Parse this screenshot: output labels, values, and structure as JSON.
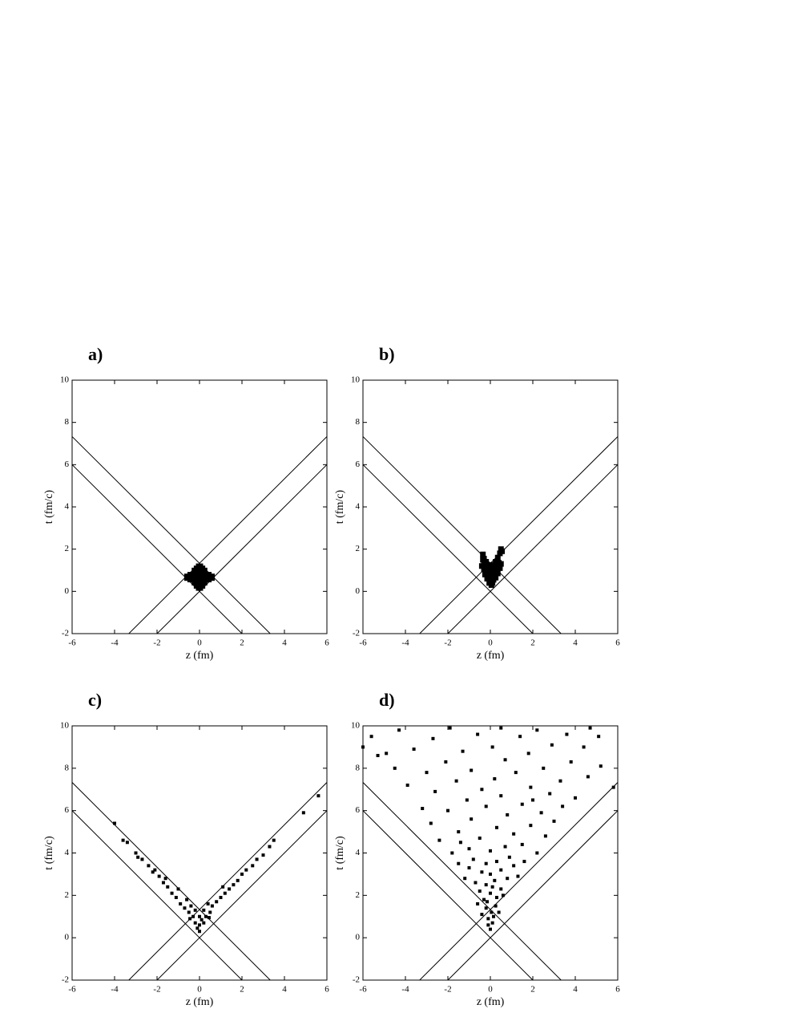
{
  "chart_data": [
    {
      "type": "scatter",
      "title": "a)",
      "x_label": "z (fm)",
      "y_label": "t (fm/c)",
      "xlim": [
        -6,
        6
      ],
      "ylim": [
        -2,
        10
      ],
      "xticks": [
        -6,
        -4,
        -2,
        0,
        2,
        4,
        6
      ],
      "yticks": [
        -2,
        0,
        2,
        4,
        6,
        8,
        10
      ],
      "color": "#000000",
      "marker_size": 9,
      "lines": [
        {
          "x": [
            -6,
            2
          ],
          "values": [
            6,
            -2
          ]
        },
        {
          "x": [
            -2,
            6
          ],
          "values": [
            -2,
            6
          ]
        },
        {
          "x": [
            -6,
            3.33
          ],
          "values": [
            7.33,
            -2
          ]
        },
        {
          "x": [
            -3.33,
            6
          ],
          "values": [
            -2,
            7.33
          ]
        }
      ],
      "x": [
        0,
        0,
        0,
        0,
        0,
        -0.2,
        -0.2,
        -0.2,
        0.2,
        0.2,
        0.2,
        -0.4,
        -0.4,
        0.4,
        0.4,
        -0.55,
        0.55,
        -0.1,
        0.1,
        -0.1,
        0.1
      ],
      "values": [
        0.2,
        0.45,
        0.7,
        0.95,
        1.15,
        0.45,
        0.7,
        0.95,
        0.45,
        0.7,
        0.95,
        0.6,
        0.75,
        0.6,
        0.75,
        0.67,
        0.67,
        0.3,
        0.3,
        1.05,
        1.05
      ]
    },
    {
      "type": "scatter",
      "title": "b)",
      "x_label": "z (fm)",
      "y_label": "t (fm/c)",
      "xlim": [
        -6,
        6
      ],
      "ylim": [
        -2,
        10
      ],
      "xticks": [
        -6,
        -4,
        -2,
        0,
        2,
        4,
        6
      ],
      "yticks": [
        -2,
        0,
        2,
        4,
        6,
        8,
        10
      ],
      "color": "#000000",
      "marker_size": 7,
      "lines": [
        {
          "x": [
            -6,
            2
          ],
          "values": [
            6,
            -2
          ]
        },
        {
          "x": [
            -2,
            6
          ],
          "values": [
            -2,
            6
          ]
        },
        {
          "x": [
            -6,
            3.33
          ],
          "values": [
            7.33,
            -2
          ]
        },
        {
          "x": [
            -3.33,
            6
          ],
          "values": [
            -2,
            7.33
          ]
        }
      ],
      "x": [
        -0.35,
        -0.3,
        -0.2,
        0.5,
        0.45,
        0.35,
        0.25,
        0.1,
        -0.05,
        -0.3,
        -0.15,
        0,
        0.15,
        0.3,
        0.4,
        -0.3,
        -0.15,
        0,
        0.15,
        0.3,
        0.45,
        -0.25,
        -0.1,
        0.05,
        0.2,
        0.35,
        -0.15,
        0,
        0.15,
        0.25,
        -0.05,
        0.1,
        0.05,
        -0.35,
        0.55,
        -0.4,
        0.5
      ],
      "values": [
        1.75,
        1.55,
        1.4,
        2.0,
        1.8,
        1.6,
        1.4,
        1.25,
        1.25,
        1.3,
        1.15,
        1.1,
        1.15,
        1.25,
        1.35,
        1.05,
        0.95,
        0.9,
        0.95,
        1.05,
        1.1,
        0.8,
        0.75,
        0.7,
        0.75,
        0.85,
        0.6,
        0.55,
        0.55,
        0.65,
        0.4,
        0.4,
        0.3,
        1.5,
        1.9,
        1.2,
        1.3
      ]
    },
    {
      "type": "scatter",
      "title": "c)",
      "x_label": "z (fm)",
      "y_label": "t (fm/c)",
      "xlim": [
        -6,
        6
      ],
      "ylim": [
        -2,
        10
      ],
      "xticks": [
        -6,
        -4,
        -2,
        0,
        2,
        4,
        6
      ],
      "yticks": [
        -2,
        0,
        2,
        4,
        6,
        8,
        10
      ],
      "color": "#000000",
      "marker_size": 4,
      "lines": [
        {
          "x": [
            -6,
            2
          ],
          "values": [
            6,
            -2
          ]
        },
        {
          "x": [
            -2,
            6
          ],
          "values": [
            -2,
            6
          ]
        },
        {
          "x": [
            -6,
            3.33
          ],
          "values": [
            7.33,
            -2
          ]
        },
        {
          "x": [
            -3.33,
            6
          ],
          "values": [
            -2,
            7.33
          ]
        }
      ],
      "x": [
        0,
        0,
        -0.2,
        0.2,
        -0.3,
        0,
        0.3,
        -0.5,
        -0.2,
        0.2,
        0.5,
        -0.7,
        0.6,
        -0.9,
        -0.4,
        0.8,
        -1.1,
        1.0,
        -0.6,
        0.4,
        -1.3,
        1.2,
        -1.0,
        1.4,
        -1.5,
        1.1,
        -1.7,
        1.6,
        -1.9,
        1.8,
        -1.6,
        2.0,
        -2.2,
        2.2,
        -2.4,
        2.5,
        -2.1,
        2.7,
        -2.7,
        3.0,
        -3.0,
        3.3,
        -2.9,
        3.5,
        -3.6,
        -3.4,
        -4.0,
        4.9,
        5.6,
        -0.1,
        0.1,
        -0.45,
        0.45
      ],
      "values": [
        0.3,
        0.6,
        0.7,
        0.7,
        1.0,
        1.0,
        1.0,
        1.2,
        1.3,
        1.3,
        1.2,
        1.4,
        1.5,
        1.6,
        1.5,
        1.7,
        1.9,
        1.9,
        1.8,
        1.6,
        2.1,
        2.1,
        2.3,
        2.3,
        2.4,
        2.4,
        2.6,
        2.5,
        2.9,
        2.7,
        2.8,
        3.0,
        3.1,
        3.2,
        3.4,
        3.4,
        3.2,
        3.7,
        3.7,
        3.9,
        4.0,
        4.3,
        3.8,
        4.6,
        4.6,
        4.5,
        5.4,
        5.9,
        6.7,
        0.45,
        0.85,
        0.9,
        0.95
      ]
    },
    {
      "type": "scatter",
      "title": "d)",
      "x_label": "z (fm)",
      "y_label": "t (fm/c)",
      "xlim": [
        -6,
        6
      ],
      "ylim": [
        -2,
        10
      ],
      "xticks": [
        -6,
        -4,
        -2,
        0,
        2,
        4,
        6
      ],
      "yticks": [
        -2,
        0,
        2,
        4,
        6,
        8,
        10
      ],
      "color": "#000000",
      "marker_size": 4,
      "lines": [
        {
          "x": [
            -6,
            2
          ],
          "values": [
            6,
            -2
          ]
        },
        {
          "x": [
            -2,
            6
          ],
          "values": [
            -2,
            6
          ]
        },
        {
          "x": [
            -6,
            3.33
          ],
          "values": [
            7.33,
            -2
          ]
        },
        {
          "x": [
            -3.33,
            6
          ],
          "values": [
            -2,
            7.33
          ]
        }
      ],
      "x": [
        0,
        0.1,
        -0.1,
        0.05,
        -0.2,
        0.25,
        -0.3,
        0.3,
        0,
        -0.5,
        0.5,
        -0.2,
        0.2,
        -0.7,
        0.8,
        0,
        -0.4,
        0.5,
        -1.0,
        1.1,
        -0.2,
        0.3,
        -0.8,
        0.9,
        -1.5,
        1.6,
        -0.1,
        0.15,
        -0.15,
        0.4,
        -0.4,
        0.6,
        -0.6,
        0.1,
        -1.2,
        1.3,
        -1.8,
        -1.0,
        0,
        0.7,
        1.5,
        2.2,
        -2.4,
        -0.5,
        1.1,
        2.6,
        -1.5,
        0.3,
        1.9,
        3.0,
        -2.8,
        -0.9,
        0.8,
        2.4,
        -2.0,
        -0.2,
        1.5,
        3.4,
        -3.2,
        -1.1,
        0.5,
        2.8,
        4.0,
        -2.6,
        -0.4,
        1.9,
        -3.9,
        -1.6,
        0.2,
        3.3,
        4.6,
        -3.0,
        -0.9,
        1.2,
        2.5,
        -4.5,
        -2.1,
        0.7,
        3.8,
        5.2,
        -5.3,
        -1.3,
        1.8,
        -3.6,
        0.1,
        2.9,
        4.4,
        -5.6,
        -2.7,
        -0.6,
        1.4,
        3.6,
        5.1,
        -4.3,
        -1.9,
        0.5,
        2.2,
        4.7,
        -6.0,
        5.8,
        -4.9,
        2.0,
        -1.4
      ],
      "values": [
        0.4,
        0.7,
        0.9,
        1.2,
        1.4,
        1.5,
        1.8,
        1.9,
        2.1,
        2.2,
        2.3,
        2.5,
        2.7,
        2.6,
        2.8,
        3.0,
        3.1,
        3.2,
        3.3,
        3.4,
        3.5,
        3.6,
        3.7,
        3.8,
        3.5,
        3.6,
        0.6,
        1.0,
        1.7,
        1.2,
        1.1,
        2.0,
        1.6,
        2.4,
        2.8,
        2.9,
        4.0,
        4.2,
        4.1,
        4.3,
        4.4,
        4.0,
        4.6,
        4.7,
        4.9,
        4.8,
        5.0,
        5.2,
        5.3,
        5.5,
        5.4,
        5.6,
        5.8,
        5.9,
        6.0,
        6.2,
        6.3,
        6.2,
        6.1,
        6.5,
        6.7,
        6.8,
        6.6,
        6.9,
        7.0,
        7.1,
        7.2,
        7.4,
        7.5,
        7.4,
        7.6,
        7.8,
        7.9,
        7.8,
        8.0,
        8.0,
        8.3,
        8.4,
        8.3,
        8.1,
        8.6,
        8.8,
        8.7,
        8.9,
        9.0,
        9.1,
        9.0,
        9.5,
        9.4,
        9.6,
        9.5,
        9.6,
        9.5,
        9.8,
        9.9,
        9.9,
        9.8,
        9.9,
        9.0,
        7.1,
        8.7,
        6.5,
        4.5
      ]
    }
  ]
}
